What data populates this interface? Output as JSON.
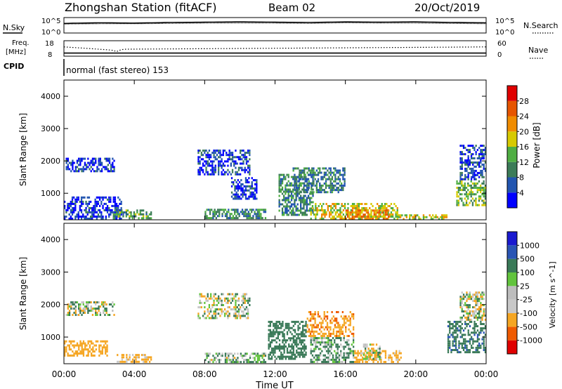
{
  "header": {
    "title": "Zhongshan Station (fitACF)",
    "beam": "Beam 02",
    "date": "20/Oct/2019"
  },
  "top_panels": {
    "nsky_label": "N.Sky",
    "nsearch_label": "N.Search",
    "noise_ticks": [
      "10^5",
      "10^0"
    ],
    "freq_label_1": "Freq.",
    "freq_label_2": "[MHz]",
    "freq_ticks": [
      "18",
      "8"
    ],
    "nave_label": "Nave",
    "nave_ticks": [
      "60",
      "0"
    ],
    "cpid_label": "CPID",
    "cpid_text": "normal (fast stereo) 153"
  },
  "colors": {
    "power": [
      "#0000ff",
      "#2255b0",
      "#3c7c58",
      "#4fae43",
      "#d7ca00",
      "#f08c00",
      "#e65500",
      "#e00000"
    ],
    "velocity": [
      "#e00000",
      "#ef5a00",
      "#f5a623",
      "#c8c8c8",
      "#bdbdbd",
      "#62c43d",
      "#3a7a58",
      "#2a55b5",
      "#1a1ad0"
    ]
  },
  "chart_data": [
    {
      "type": "line",
      "name": "noise",
      "ylim": [
        0,
        5
      ],
      "ytick_labels": [
        "10^0",
        "10^5"
      ],
      "series": [
        {
          "name": "N.Sky",
          "style": "solid",
          "x": [
            0,
            2,
            4,
            6,
            8,
            10,
            12,
            14,
            16,
            18,
            20,
            22,
            24
          ],
          "y": [
            3.1,
            3.3,
            3.2,
            3.4,
            3.5,
            3.6,
            3.5,
            3.4,
            3.6,
            3.5,
            3.6,
            3.4,
            3.3
          ]
        },
        {
          "name": "N.Search",
          "style": "dotted",
          "x": [
            0,
            2,
            4,
            6,
            8,
            10,
            12,
            14,
            16,
            18,
            20,
            22,
            24
          ],
          "y": [
            2.9,
            3.0,
            3.0,
            3.1,
            3.2,
            3.2,
            3.2,
            3.1,
            3.3,
            3.2,
            3.2,
            3.1,
            3.0
          ]
        }
      ]
    },
    {
      "type": "line",
      "name": "frequency",
      "ylim": [
        8,
        18
      ],
      "y2lim": [
        0,
        60
      ],
      "series": [
        {
          "name": "Freq. [MHz]",
          "style": "solid",
          "x": [
            0,
            24
          ],
          "y": [
            10.0,
            10.0
          ]
        },
        {
          "name": "Nave",
          "style": "dotted",
          "x": [
            0,
            2.7,
            3.0,
            3.3,
            24
          ],
          "y": [
            14.0,
            12.0,
            11.0,
            12.5,
            14.0
          ]
        }
      ]
    },
    {
      "type": "heatmap",
      "title": "",
      "variable": "Power",
      "xlabel": "Time UT",
      "ylabel": "Slant Range [km]",
      "xlim": [
        0,
        24
      ],
      "ylim": [
        180,
        4500
      ],
      "xticks": [
        "00:00",
        "04:00",
        "08:00",
        "12:00",
        "16:00",
        "20:00",
        "00:00"
      ],
      "yticks": [
        1000,
        2000,
        3000,
        4000
      ],
      "colorbar_label": "Power [dB]",
      "colorbar_ticks": [
        4,
        8,
        12,
        16,
        20,
        24,
        28
      ],
      "colorbar_range": [
        0,
        32
      ],
      "regions": [
        {
          "t": [
            0.1,
            2.9
          ],
          "r": [
            1650,
            2100
          ],
          "level": 4
        },
        {
          "t": [
            0.0,
            3.3
          ],
          "r": [
            180,
            900
          ],
          "level": 4
        },
        {
          "t": [
            2.8,
            5.0
          ],
          "r": [
            200,
            500
          ],
          "level": 12
        },
        {
          "t": [
            7.6,
            10.6
          ],
          "r": [
            1550,
            2350
          ],
          "level": 5
        },
        {
          "t": [
            8.0,
            11.5
          ],
          "r": [
            200,
            520
          ],
          "level": 11
        },
        {
          "t": [
            9.5,
            11.0
          ],
          "r": [
            800,
            1500
          ],
          "level": 4
        },
        {
          "t": [
            12.2,
            14.2
          ],
          "r": [
            300,
            1600
          ],
          "level": 10
        },
        {
          "t": [
            13.0,
            16.0
          ],
          "r": [
            1000,
            1800
          ],
          "level": 9
        },
        {
          "t": [
            14.0,
            19.0
          ],
          "r": [
            180,
            700
          ],
          "level": 18
        },
        {
          "t": [
            16.0,
            18.5
          ],
          "r": [
            180,
            500
          ],
          "level": 23
        },
        {
          "t": [
            19.0,
            21.8
          ],
          "r": [
            180,
            350
          ],
          "level": 17
        },
        {
          "t": [
            22.3,
            24.0
          ],
          "r": [
            600,
            1400
          ],
          "level": 14
        },
        {
          "t": [
            22.5,
            24.0
          ],
          "r": [
            1400,
            2500
          ],
          "level": 6
        }
      ]
    },
    {
      "type": "heatmap",
      "title": "",
      "variable": "Velocity",
      "xlabel": "Time UT",
      "ylabel": "Slant Range [km]",
      "xlim": [
        0,
        24
      ],
      "ylim": [
        180,
        4500
      ],
      "xticks": [
        "00:00",
        "04:00",
        "08:00",
        "12:00",
        "16:00",
        "20:00",
        "00:00"
      ],
      "yticks": [
        1000,
        2000,
        3000,
        4000
      ],
      "colorbar_label": "Velocity [m s^-1]",
      "colorbar_ticks": [
        "-1000",
        "-500",
        "-100",
        "-25",
        "25",
        "100",
        "500",
        "1000"
      ],
      "regions": [
        {
          "t": [
            0.1,
            2.9
          ],
          "r": [
            1650,
            2100
          ],
          "vel": 0
        },
        {
          "t": [
            0.0,
            2.5
          ],
          "r": [
            400,
            900
          ],
          "vel": -300
        },
        {
          "t": [
            3.0,
            5.0
          ],
          "r": [
            200,
            480
          ],
          "vel": -200
        },
        {
          "t": [
            7.6,
            10.6
          ],
          "r": [
            1550,
            2350
          ],
          "vel": 0
        },
        {
          "t": [
            8.0,
            11.5
          ],
          "r": [
            200,
            520
          ],
          "vel": 80
        },
        {
          "t": [
            11.6,
            13.8
          ],
          "r": [
            300,
            1500
          ],
          "vel": 300
        },
        {
          "t": [
            13.8,
            16.5
          ],
          "r": [
            1000,
            1800
          ],
          "vel": -400
        },
        {
          "t": [
            14.0,
            16.5
          ],
          "r": [
            200,
            1000
          ],
          "vel": 150
        },
        {
          "t": [
            16.5,
            19.2
          ],
          "r": [
            200,
            600
          ],
          "vel": -250
        },
        {
          "t": [
            17.0,
            18.0
          ],
          "r": [
            300,
            800
          ],
          "vel": 0
        },
        {
          "t": [
            21.8,
            24.0
          ],
          "r": [
            500,
            1500
          ],
          "vel": 400
        },
        {
          "t": [
            22.5,
            24.0
          ],
          "r": [
            1500,
            2400
          ],
          "vel": 0
        }
      ]
    }
  ]
}
